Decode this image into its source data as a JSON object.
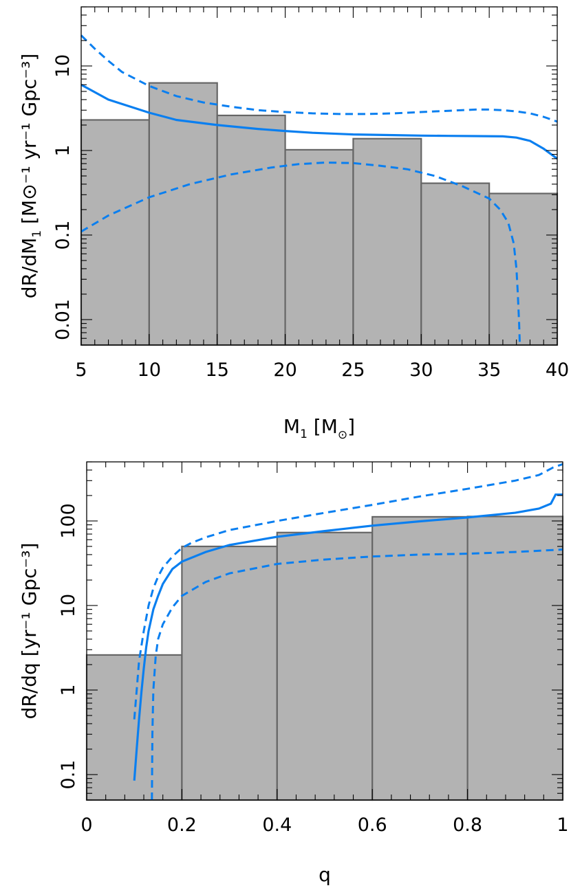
{
  "chart_data": [
    {
      "type": "bar",
      "name": "primary-mass",
      "xlabel": "M",
      "xlabel_sub": "1",
      "xlabel_unit_open": "[M",
      "xlabel_unit_sub": "⊙",
      "xlabel_unit_close": "]",
      "ylabel": "dR/dM",
      "ylabel_sub": "1",
      "ylabel_unit": "[M⊙⁻¹ yr⁻¹ Gpc⁻³]",
      "xlim": [
        5,
        40
      ],
      "ylim": [
        0.005,
        50
      ],
      "yscale": "log",
      "xticks": [
        5,
        10,
        15,
        20,
        25,
        30,
        35,
        40
      ],
      "xtick_labels": [
        "5",
        "10",
        "15",
        "20",
        "25",
        "30",
        "35",
        "40"
      ],
      "yticks": [
        0.01,
        0.1,
        1,
        10
      ],
      "ytick_labels": [
        "0.01",
        "0.1",
        "1",
        "10"
      ],
      "bins": [
        {
          "x0": 5,
          "x1": 10,
          "value": 2.3
        },
        {
          "x0": 10,
          "x1": 15,
          "value": 6.3
        },
        {
          "x0": 15,
          "x1": 20,
          "value": 2.6
        },
        {
          "x0": 20,
          "x1": 25,
          "value": 1.02
        },
        {
          "x0": 25,
          "x1": 30,
          "value": 1.38
        },
        {
          "x0": 30,
          "x1": 35,
          "value": 0.41
        },
        {
          "x0": 35,
          "x1": 40,
          "value": 0.31
        }
      ],
      "series": [
        {
          "name": "median",
          "style": "solid",
          "color": "#0a7ff0",
          "x": [
            5,
            7,
            10,
            12,
            15,
            18,
            20,
            22,
            25,
            28,
            30,
            32,
            34,
            36,
            37,
            38,
            39,
            40
          ],
          "y": [
            6.0,
            4.0,
            2.8,
            2.3,
            2.0,
            1.8,
            1.7,
            1.62,
            1.55,
            1.52,
            1.5,
            1.49,
            1.48,
            1.47,
            1.42,
            1.3,
            1.05,
            0.8
          ]
        },
        {
          "name": "upper-90",
          "style": "dashed",
          "color": "#0a7ff0",
          "x": [
            5,
            6,
            7,
            8,
            10,
            12,
            14,
            16,
            18,
            20,
            22,
            24,
            26,
            28,
            30,
            32,
            34,
            35,
            36,
            37,
            38,
            39,
            40
          ],
          "y": [
            23,
            16,
            11.5,
            8.5,
            5.8,
            4.4,
            3.7,
            3.3,
            3.0,
            2.85,
            2.75,
            2.7,
            2.7,
            2.75,
            2.85,
            2.95,
            3.05,
            3.05,
            3.0,
            2.9,
            2.75,
            2.5,
            2.2
          ]
        },
        {
          "name": "lower-90",
          "style": "dashed",
          "color": "#0a7ff0",
          "x": [
            5,
            7,
            10,
            13,
            16,
            19,
            21,
            23,
            25,
            27,
            29,
            31,
            33,
            35,
            35.8,
            36.4,
            36.8,
            37.0,
            37.1,
            37.2,
            37.25
          ],
          "y": [
            0.11,
            0.17,
            0.28,
            0.4,
            0.52,
            0.63,
            0.69,
            0.72,
            0.71,
            0.66,
            0.6,
            0.5,
            0.38,
            0.27,
            0.2,
            0.14,
            0.08,
            0.04,
            0.02,
            0.009,
            0.005
          ]
        }
      ]
    },
    {
      "type": "bar",
      "name": "mass-ratio",
      "xlabel": "q",
      "ylabel": "dR/dq",
      "ylabel_unit": "[yr⁻¹ Gpc⁻³]",
      "xlim": [
        0,
        1
      ],
      "ylim": [
        0.05,
        500
      ],
      "yscale": "log",
      "xticks": [
        0,
        0.2,
        0.4,
        0.6,
        0.8,
        1
      ],
      "xtick_labels": [
        "0",
        "0.2",
        "0.4",
        "0.6",
        "0.8",
        "1"
      ],
      "yticks": [
        0.1,
        1,
        10,
        100
      ],
      "ytick_labels": [
        "0.1",
        "1",
        "10",
        "100"
      ],
      "bins": [
        {
          "x0": 0,
          "x1": 0.2,
          "value": 2.6
        },
        {
          "x0": 0.2,
          "x1": 0.4,
          "value": 50
        },
        {
          "x0": 0.4,
          "x1": 0.6,
          "value": 73
        },
        {
          "x0": 0.6,
          "x1": 0.8,
          "value": 112
        },
        {
          "x0": 0.8,
          "x1": 1,
          "value": 113
        }
      ],
      "series": [
        {
          "name": "median",
          "style": "solid",
          "color": "#0a7ff0",
          "x": [
            0.1,
            0.105,
            0.11,
            0.115,
            0.12,
            0.125,
            0.13,
            0.14,
            0.15,
            0.16,
            0.18,
            0.2,
            0.25,
            0.3,
            0.4,
            0.5,
            0.6,
            0.7,
            0.8,
            0.9,
            0.95,
            0.975,
            0.985,
            1.0
          ],
          "y": [
            0.085,
            0.2,
            0.45,
            0.95,
            1.8,
            3.2,
            5,
            9,
            13,
            18,
            27,
            33,
            43,
            52,
            65,
            76,
            88,
            99,
            110,
            125,
            140,
            160,
            205,
            205
          ]
        },
        {
          "name": "upper-90",
          "style": "dashed",
          "color": "#0a7ff0",
          "x": [
            0.1,
            0.105,
            0.11,
            0.12,
            0.13,
            0.14,
            0.15,
            0.16,
            0.18,
            0.2,
            0.22,
            0.25,
            0.3,
            0.4,
            0.5,
            0.6,
            0.7,
            0.8,
            0.9,
            0.95,
            0.98,
            1.0
          ],
          "y": [
            0.45,
            1.0,
            2.2,
            5,
            10,
            16,
            22,
            28,
            38,
            48,
            55,
            64,
            78,
            100,
            125,
            155,
            195,
            240,
            300,
            350,
            430,
            470
          ]
        },
        {
          "name": "lower-90",
          "style": "dashed",
          "color": "#0a7ff0",
          "x": [
            0.137,
            0.138,
            0.14,
            0.145,
            0.15,
            0.16,
            0.18,
            0.2,
            0.25,
            0.3,
            0.4,
            0.5,
            0.6,
            0.7,
            0.8,
            0.9,
            1.0
          ],
          "y": [
            0.05,
            0.3,
            1.0,
            2.5,
            4,
            6,
            9.5,
            13,
            19,
            24,
            31,
            35,
            38,
            40,
            41,
            43,
            46
          ]
        }
      ]
    }
  ]
}
